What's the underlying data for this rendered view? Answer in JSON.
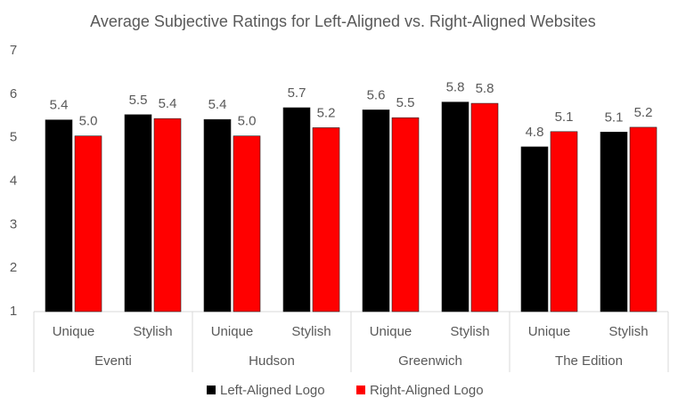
{
  "chart_data": {
    "type": "bar",
    "title": "Average Subjective Ratings for Left-Aligned vs. Right-Aligned Websites",
    "categories": [
      "Unique",
      "Stylish",
      "Unique",
      "Stylish",
      "Unique",
      "Stylish",
      "Unique",
      "Stylish"
    ],
    "groups": [
      "Eventi",
      "Hudson",
      "Greenwich",
      "The Edition"
    ],
    "series": [
      {
        "name": "Left-Aligned Logo",
        "color": "#000000",
        "values": [
          5.41,
          5.53,
          5.42,
          5.69,
          5.64,
          5.82,
          4.79,
          5.13
        ],
        "value_labels": [
          "5.4",
          "5.5",
          "5.4",
          "5.7",
          "5.6",
          "5.8",
          "4.8",
          "5.1"
        ]
      },
      {
        "name": "Right-Aligned Logo",
        "color": "#ff0000",
        "values": [
          5.04,
          5.44,
          5.04,
          5.23,
          5.46,
          5.79,
          5.14,
          5.24
        ],
        "value_labels": [
          "5.0",
          "5.4",
          "5.0",
          "5.2",
          "5.5",
          "5.8",
          "5.1",
          "5.2"
        ]
      }
    ],
    "ylim": [
      1,
      7
    ],
    "yticks": [
      1,
      2,
      3,
      4,
      5,
      6,
      7
    ],
    "grid": false,
    "legend": "bottom"
  }
}
